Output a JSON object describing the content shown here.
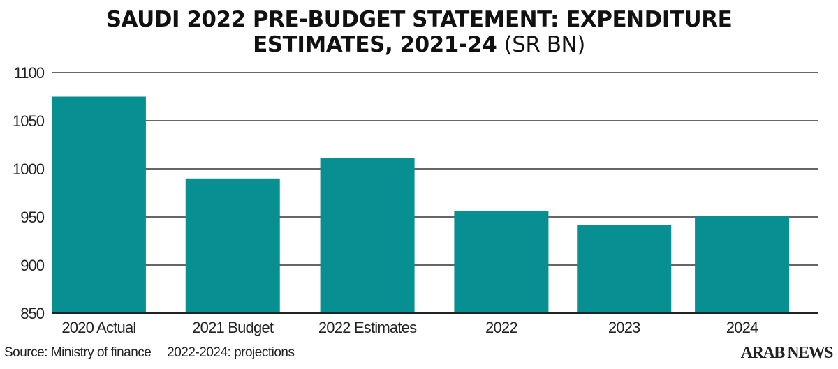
{
  "title": {
    "line1": "SAUDI 2022 PRE-BUDGET STATEMENT: EXPENDITURE",
    "line2_bold": "ESTIMATES, 2021-24",
    "line2_light": "(SR BN)"
  },
  "chart_data": {
    "type": "bar",
    "title": "SAUDI 2022 PRE-BUDGET STATEMENT: EXPENDITURE ESTIMATES, 2021-24 (SR BN)",
    "categories": [
      "2020 Actual",
      "2021 Budget",
      "2022 Estimates",
      "2022",
      "2023",
      "2024"
    ],
    "values": [
      1075,
      990,
      1011,
      956,
      942,
      951
    ],
    "xlabel": "",
    "ylabel": "",
    "ylim": [
      850,
      1100
    ],
    "yticks": [
      1100,
      1050,
      1000,
      950,
      900,
      850
    ],
    "grid": true,
    "bar_color": "#088f91",
    "legend": "none"
  },
  "footer": {
    "source": "Source: Ministry of finance",
    "note": "2022-2024: projections",
    "brand": "ARAB NEWS"
  }
}
